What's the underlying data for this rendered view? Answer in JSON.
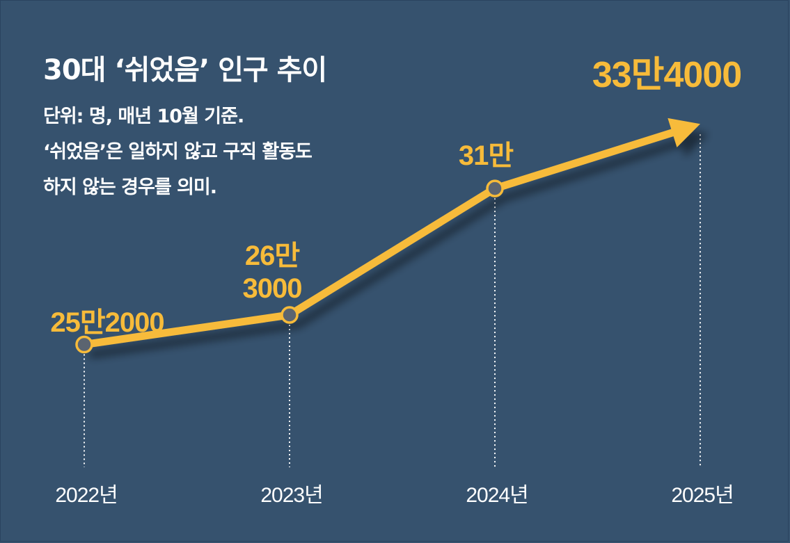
{
  "chart_data": {
    "type": "line",
    "title": "30대 ‘쉬었음’ 인구 추이",
    "notes": [
      "단위: 명, 매년 10월 기준.",
      "‘쉬었음’은 일하지 않고 구직 활동도",
      "하지 않는 경우를 의미."
    ],
    "categories": [
      "2022년",
      "2023년",
      "2024년",
      "2025년"
    ],
    "values": [
      252000,
      263000,
      310000,
      334000
    ],
    "data_labels": [
      [
        "25만2000"
      ],
      [
        "26만",
        "3000"
      ],
      [
        "31만"
      ],
      [
        "33만4000"
      ]
    ],
    "ylim": [
      240000,
      340000
    ],
    "grid": false,
    "colors": {
      "background": "#36526e",
      "line": "#f7bb3a",
      "marker": "#5b6470",
      "text": "#ffffff"
    }
  }
}
